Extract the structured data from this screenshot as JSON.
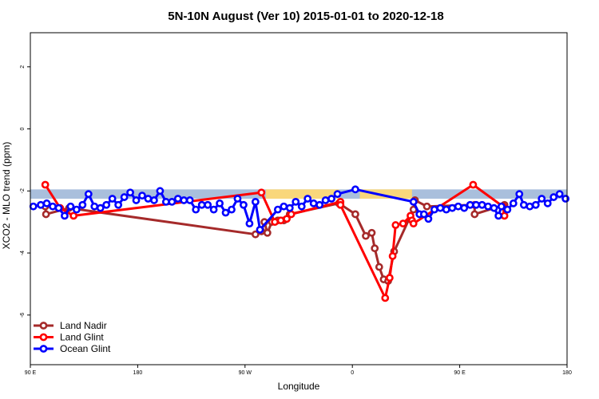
{
  "chart_data": {
    "type": "line",
    "title": "5N-10N August (Ver 10)   2015-01-01 to 2020-12-18",
    "xlabel": "Longitude",
    "ylabel": "XCO2 - MLO trend (ppm)",
    "xlim": [
      0,
      360
    ],
    "ylim": [
      -7.6,
      3.1
    ],
    "x_ticks": [
      {
        "value": 0,
        "label": "90 E"
      },
      {
        "value": 72,
        "label": "180"
      },
      {
        "value": 144,
        "label": "90 W"
      },
      {
        "value": 216,
        "label": "0"
      },
      {
        "value": 288,
        "label": "90 E"
      },
      {
        "value": 360,
        "label": "180"
      }
    ],
    "y_ticks": [
      {
        "value": 2,
        "label": "2"
      },
      {
        "value": 0,
        "label": "0"
      },
      {
        "value": -2,
        "label": "-2"
      },
      {
        "value": -4,
        "label": "-4"
      },
      {
        "value": -6,
        "label": "-6"
      }
    ],
    "grid": false,
    "legend_position": "bottom-left",
    "surface_band": {
      "y_range": [
        -2.25,
        -1.95
      ],
      "ocean_color": "#a9bfdc",
      "land_color": "#f9d77b",
      "land_x_ranges": [
        [
          158,
          207
        ],
        [
          221,
          256
        ]
      ]
    },
    "series": [
      {
        "name": "Land Nadir",
        "color": "#a52a2a",
        "points": [
          [
            10,
            -2.5
          ],
          [
            10.5,
            -2.75
          ],
          [
            26,
            -2.55
          ],
          [
            151,
            -3.4
          ],
          [
            155,
            -3.3
          ],
          [
            157,
            -3.0
          ],
          [
            159,
            -3.35
          ],
          [
            162,
            -3.0
          ],
          [
            166,
            -2.95
          ],
          [
            170,
            -2.95
          ],
          [
            174,
            -2.75
          ],
          [
            207,
            -2.4
          ],
          [
            218,
            -2.75
          ],
          [
            225,
            -3.45
          ],
          [
            229,
            -3.35
          ],
          [
            231,
            -3.85
          ],
          [
            234,
            -4.45
          ],
          [
            237,
            -4.85
          ],
          [
            240,
            -4.9
          ],
          [
            244,
            -3.95
          ],
          [
            257,
            -2.6
          ],
          [
            258,
            -2.3
          ],
          [
            266,
            -2.5
          ],
          [
            298,
            -2.45
          ],
          [
            298,
            -2.75
          ],
          [
            318,
            -2.45
          ]
        ]
      },
      {
        "name": "Land Glint",
        "color": "#ff0000",
        "points": [
          [
            10,
            -1.8
          ],
          [
            20,
            -2.55
          ],
          [
            29,
            -2.8
          ],
          [
            155,
            -2.05
          ],
          [
            164,
            -3.0
          ],
          [
            168,
            -2.95
          ],
          [
            172,
            -2.9
          ],
          [
            175,
            -2.75
          ],
          [
            208,
            -2.35
          ],
          [
            208,
            -2.45
          ],
          [
            238,
            -5.45
          ],
          [
            241,
            -4.8
          ],
          [
            243,
            -4.1
          ],
          [
            245,
            -3.1
          ],
          [
            250,
            -3.05
          ],
          [
            255,
            -2.8
          ],
          [
            256,
            -2.95
          ],
          [
            257,
            -3.05
          ],
          [
            297,
            -1.8
          ],
          [
            317,
            -2.5
          ],
          [
            318,
            -2.8
          ]
        ]
      },
      {
        "name": "Ocean Glint",
        "color": "#0000ff",
        "points": [
          [
            2,
            -2.5
          ],
          [
            7,
            -2.45
          ],
          [
            11,
            -2.4
          ],
          [
            15,
            -2.5
          ],
          [
            19,
            -2.55
          ],
          [
            23,
            -2.8
          ],
          [
            27,
            -2.5
          ],
          [
            31,
            -2.6
          ],
          [
            35,
            -2.45
          ],
          [
            39,
            -2.1
          ],
          [
            43,
            -2.5
          ],
          [
            47,
            -2.55
          ],
          [
            51,
            -2.45
          ],
          [
            55,
            -2.25
          ],
          [
            59,
            -2.45
          ],
          [
            63,
            -2.2
          ],
          [
            67,
            -2.05
          ],
          [
            71,
            -2.3
          ],
          [
            75,
            -2.15
          ],
          [
            79,
            -2.25
          ],
          [
            83,
            -2.3
          ],
          [
            87,
            -2.0
          ],
          [
            91,
            -2.35
          ],
          [
            95,
            -2.35
          ],
          [
            99,
            -2.25
          ],
          [
            103,
            -2.3
          ],
          [
            107,
            -2.3
          ],
          [
            111,
            -2.6
          ],
          [
            115,
            -2.45
          ],
          [
            119,
            -2.45
          ],
          [
            123,
            -2.6
          ],
          [
            127,
            -2.4
          ],
          [
            131,
            -2.7
          ],
          [
            135,
            -2.6
          ],
          [
            139,
            -2.25
          ],
          [
            143,
            -2.45
          ],
          [
            147,
            -3.05
          ],
          [
            151,
            -2.35
          ],
          [
            154,
            -3.25
          ],
          [
            166,
            -2.6
          ],
          [
            170,
            -2.5
          ],
          [
            174,
            -2.55
          ],
          [
            178,
            -2.35
          ],
          [
            182,
            -2.5
          ],
          [
            186,
            -2.25
          ],
          [
            190,
            -2.4
          ],
          [
            194,
            -2.45
          ],
          [
            198,
            -2.3
          ],
          [
            202,
            -2.25
          ],
          [
            206,
            -2.1
          ],
          [
            218,
            -1.95
          ],
          [
            257,
            -2.35
          ],
          [
            261,
            -2.75
          ],
          [
            264,
            -2.75
          ],
          [
            267,
            -2.9
          ],
          [
            271,
            -2.6
          ],
          [
            275,
            -2.55
          ],
          [
            279,
            -2.6
          ],
          [
            283,
            -2.55
          ],
          [
            287,
            -2.5
          ],
          [
            291,
            -2.55
          ],
          [
            295,
            -2.45
          ],
          [
            299,
            -2.45
          ],
          [
            303,
            -2.45
          ],
          [
            307,
            -2.5
          ],
          [
            311,
            -2.55
          ],
          [
            314,
            -2.8
          ],
          [
            316,
            -2.5
          ],
          [
            320,
            -2.6
          ],
          [
            324,
            -2.4
          ],
          [
            328,
            -2.1
          ],
          [
            331,
            -2.45
          ],
          [
            335,
            -2.5
          ],
          [
            339,
            -2.45
          ],
          [
            343,
            -2.25
          ],
          [
            347,
            -2.4
          ],
          [
            351,
            -2.2
          ],
          [
            355,
            -2.1
          ],
          [
            359,
            -2.25
          ]
        ]
      }
    ]
  }
}
